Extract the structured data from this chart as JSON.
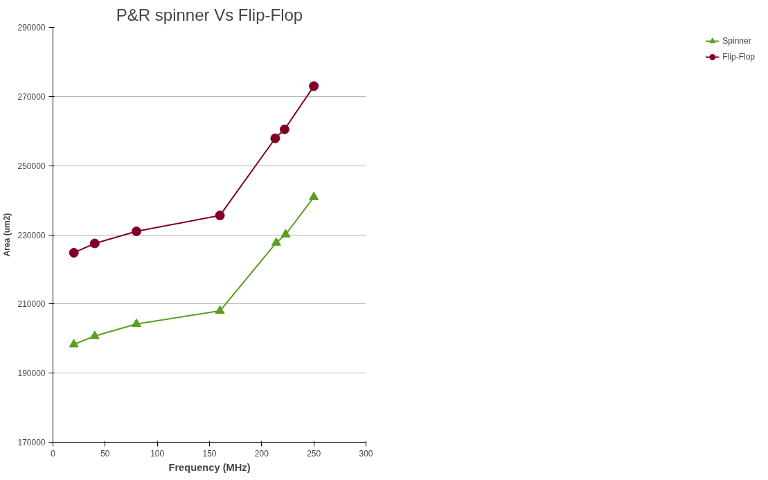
{
  "chart_data": {
    "type": "line",
    "title": "P&R spinner Vs Flip-Flop",
    "xlabel": "Frequency (MHz)",
    "ylabel": "Area (um2)",
    "xlim": [
      0,
      300
    ],
    "xticks": [
      0,
      50,
      100,
      150,
      200,
      250,
      300
    ],
    "ylim": [
      170000,
      290000
    ],
    "yticks": [
      170000,
      190000,
      210000,
      230000,
      250000,
      270000,
      290000
    ],
    "grid": "y",
    "legend": "right",
    "line_style": "solid",
    "series": [
      {
        "name": "Spinner",
        "color": "#5a9e1e",
        "marker": "triangle",
        "x": [
          20,
          40,
          80,
          160,
          214,
          223,
          250
        ],
        "values": [
          198300,
          200700,
          204200,
          208000,
          227700,
          230100,
          240900
        ]
      },
      {
        "name": "Flip-Flop",
        "color": "#7f0022",
        "marker": "circle",
        "x": [
          20,
          40,
          80,
          160,
          213,
          222,
          250
        ],
        "values": [
          224800,
          227500,
          231000,
          235600,
          257900,
          260500,
          273000
        ]
      }
    ]
  }
}
